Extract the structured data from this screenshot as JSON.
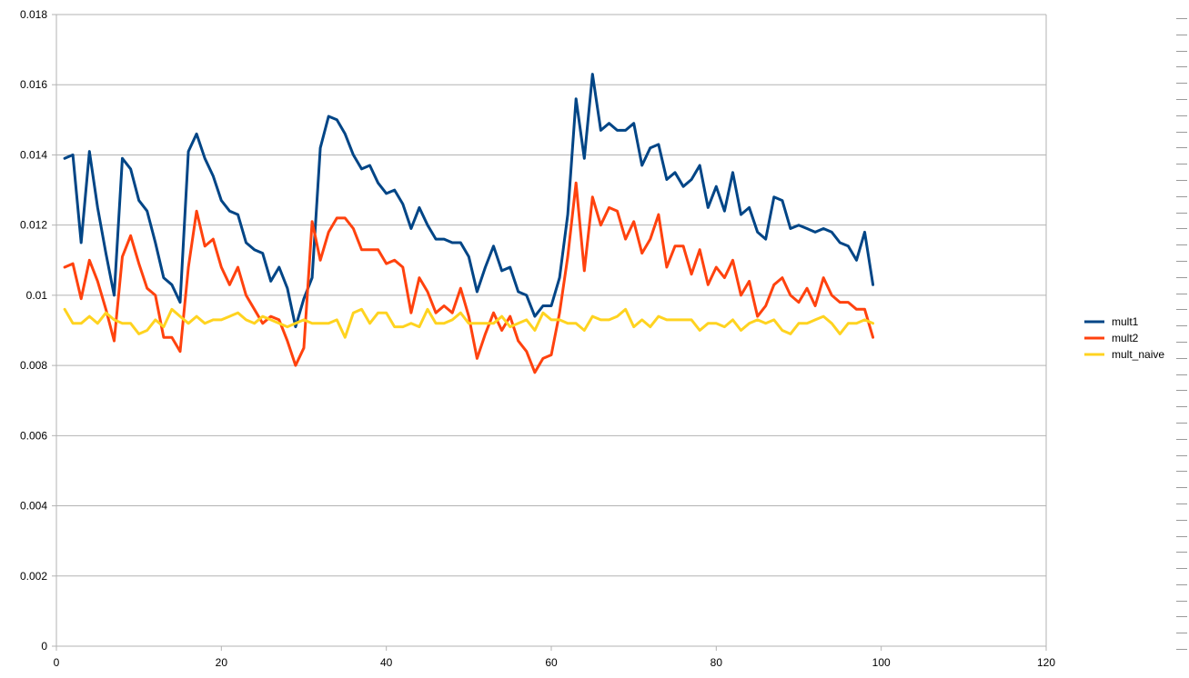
{
  "chart_data": {
    "type": "line",
    "title": "",
    "xlabel": "",
    "ylabel": "",
    "xlim": [
      0,
      120
    ],
    "ylim": [
      0,
      0.018
    ],
    "xticks": [
      0,
      20,
      40,
      60,
      80,
      100,
      120
    ],
    "yticks": [
      0,
      0.002,
      0.004,
      0.006,
      0.008,
      0.01,
      0.012,
      0.014,
      0.016,
      0.018
    ],
    "ytick_labels": [
      "0",
      "0.002",
      "0.004",
      "0.006",
      "0.008",
      "0.01",
      "0.012",
      "0.014",
      "0.016",
      "0.018"
    ],
    "xtick_labels": [
      "0",
      "20",
      "40",
      "60",
      "80",
      "100",
      "120"
    ],
    "grid": "horizontal",
    "legend": "right",
    "series": [
      {
        "name": "mult1",
        "color": "#004586",
        "y": [
          0.0139,
          0.014,
          0.0115,
          0.0141,
          0.0125,
          0.0112,
          0.01,
          0.0139,
          0.0136,
          0.0127,
          0.0124,
          0.0115,
          0.0105,
          0.0103,
          0.0098,
          0.0141,
          0.0146,
          0.0139,
          0.0134,
          0.0127,
          0.0124,
          0.0123,
          0.0115,
          0.0113,
          0.0112,
          0.0104,
          0.0108,
          0.0102,
          0.0091,
          0.0099,
          0.0105,
          0.0142,
          0.0151,
          0.015,
          0.0146,
          0.014,
          0.0136,
          0.0137,
          0.0132,
          0.0129,
          0.013,
          0.0126,
          0.0119,
          0.0125,
          0.012,
          0.0116,
          0.0116,
          0.0115,
          0.0115,
          0.0111,
          0.0101,
          0.0108,
          0.0114,
          0.0107,
          0.0108,
          0.0101,
          0.01,
          0.0094,
          0.0097,
          0.0097,
          0.0105,
          0.0123,
          0.0156,
          0.0139,
          0.0163,
          0.0147,
          0.0149,
          0.0147,
          0.0147,
          0.0149,
          0.0137,
          0.0142,
          0.0143,
          0.0133,
          0.0135,
          0.0131,
          0.0133,
          0.0137,
          0.0125,
          0.0131,
          0.0124,
          0.0135,
          0.0123,
          0.0125,
          0.0118,
          0.0116,
          0.0128,
          0.0127,
          0.0119,
          0.012,
          0.0119,
          0.0118,
          0.0119,
          0.0118,
          0.0115,
          0.0114,
          0.011,
          0.0118,
          0.0103
        ]
      },
      {
        "name": "mult2",
        "color": "#ff420e",
        "y": [
          0.0108,
          0.0109,
          0.0099,
          0.011,
          0.0104,
          0.0096,
          0.0087,
          0.0111,
          0.0117,
          0.0109,
          0.0102,
          0.01,
          0.0088,
          0.0088,
          0.0084,
          0.0108,
          0.0124,
          0.0114,
          0.0116,
          0.0108,
          0.0103,
          0.0108,
          0.01,
          0.0096,
          0.0092,
          0.0094,
          0.0093,
          0.0087,
          0.008,
          0.0085,
          0.0121,
          0.011,
          0.0118,
          0.0122,
          0.0122,
          0.0119,
          0.0113,
          0.0113,
          0.0113,
          0.0109,
          0.011,
          0.0108,
          0.0095,
          0.0105,
          0.0101,
          0.0095,
          0.0097,
          0.0095,
          0.0102,
          0.0094,
          0.0082,
          0.0089,
          0.0095,
          0.009,
          0.0094,
          0.0087,
          0.0084,
          0.0078,
          0.0082,
          0.0083,
          0.0095,
          0.0111,
          0.0132,
          0.0107,
          0.0128,
          0.012,
          0.0125,
          0.0124,
          0.0116,
          0.0121,
          0.0112,
          0.0116,
          0.0123,
          0.0108,
          0.0114,
          0.0114,
          0.0106,
          0.0113,
          0.0103,
          0.0108,
          0.0105,
          0.011,
          0.01,
          0.0104,
          0.0094,
          0.0097,
          0.0103,
          0.0105,
          0.01,
          0.0098,
          0.0102,
          0.0097,
          0.0105,
          0.01,
          0.0098,
          0.0098,
          0.0096,
          0.0096,
          0.0088
        ]
      },
      {
        "name": "mult_naive",
        "color": "#ffd320",
        "y": [
          0.0096,
          0.0092,
          0.0092,
          0.0094,
          0.0092,
          0.0095,
          0.0093,
          0.0092,
          0.0092,
          0.0089,
          0.009,
          0.0093,
          0.0091,
          0.0096,
          0.0094,
          0.0092,
          0.0094,
          0.0092,
          0.0093,
          0.0093,
          0.0094,
          0.0095,
          0.0093,
          0.0092,
          0.0094,
          0.0093,
          0.0092,
          0.0091,
          0.0092,
          0.0093,
          0.0092,
          0.0092,
          0.0092,
          0.0093,
          0.0088,
          0.0095,
          0.0096,
          0.0092,
          0.0095,
          0.0095,
          0.0091,
          0.0091,
          0.0092,
          0.0091,
          0.0096,
          0.0092,
          0.0092,
          0.0093,
          0.0095,
          0.0092,
          0.0092,
          0.0092,
          0.0092,
          0.0094,
          0.0091,
          0.0092,
          0.0093,
          0.009,
          0.0095,
          0.0093,
          0.0093,
          0.0092,
          0.0092,
          0.009,
          0.0094,
          0.0093,
          0.0093,
          0.0094,
          0.0096,
          0.0091,
          0.0093,
          0.0091,
          0.0094,
          0.0093,
          0.0093,
          0.0093,
          0.0093,
          0.009,
          0.0092,
          0.0092,
          0.0091,
          0.0093,
          0.009,
          0.0092,
          0.0093,
          0.0092,
          0.0093,
          0.009,
          0.0089,
          0.0092,
          0.0092,
          0.0093,
          0.0094,
          0.0092,
          0.0089,
          0.0092,
          0.0092,
          0.0093,
          0.0092
        ]
      }
    ]
  }
}
